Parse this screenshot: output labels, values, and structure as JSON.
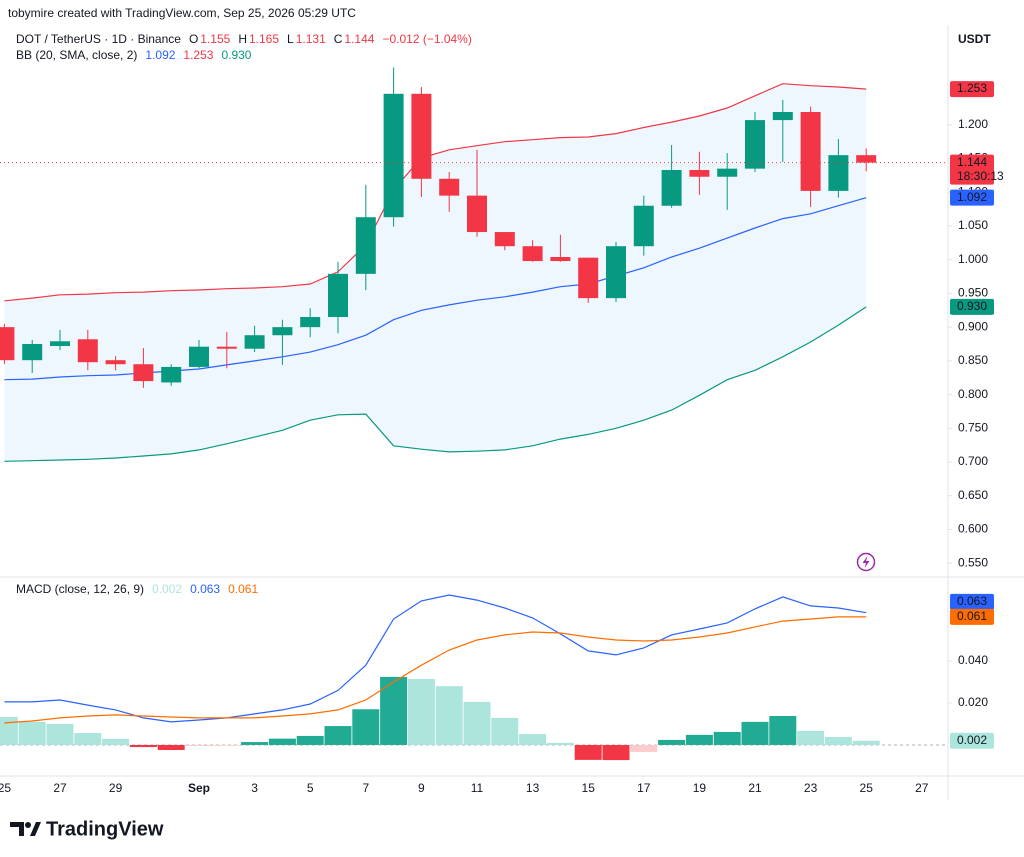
{
  "header": {
    "attribution": "tobymire created with TradingView.com, Sep 25, 2026 05:29 UTC"
  },
  "footer": {
    "brand": "TradingView"
  },
  "chart_data": [
    {
      "type": "candlestick",
      "symbol": "DOT / TetherUS · 1D · Binance",
      "currency": "USDT",
      "ohlc_letters": [
        "O",
        "H",
        "L",
        "C"
      ],
      "change_label": "−0.012 (−1.04%)",
      "countdown": "18:30:13",
      "colors": {
        "up": "#089981",
        "down": "#f23645"
      },
      "categories": [
        "25",
        null,
        "27",
        null,
        "29",
        null,
        null,
        "Sep",
        null,
        "3",
        null,
        "5",
        null,
        "7",
        null,
        "9",
        null,
        "11",
        null,
        "13",
        null,
        "15",
        null,
        "17",
        null,
        "19",
        null,
        "21",
        null,
        "23",
        null,
        "25",
        null,
        "27"
      ],
      "open": [
        0.9,
        0.851,
        0.872,
        0.882,
        0.851,
        0.845,
        0.818,
        0.841,
        0.871,
        0.868,
        0.888,
        0.9,
        0.915,
        0.979,
        1.063,
        1.246,
        1.12,
        1.095,
        1.041,
        1.02,
        1.004,
        1.003,
        0.943,
        1.02,
        1.08,
        1.133,
        1.123,
        1.135,
        1.207,
        1.219,
        1.102,
        1.155,
        null,
        null
      ],
      "high": [
        0.905,
        0.881,
        0.896,
        0.896,
        0.857,
        0.869,
        0.845,
        0.881,
        0.893,
        0.902,
        0.911,
        0.928,
        0.997,
        1.111,
        1.285,
        1.256,
        1.13,
        1.163,
        1.041,
        1.029,
        1.037,
        1.003,
        1.026,
        1.095,
        1.17,
        1.16,
        1.158,
        1.219,
        1.237,
        1.227,
        1.179,
        1.165,
        null,
        null
      ],
      "low": [
        0.845,
        0.832,
        0.866,
        0.836,
        0.836,
        0.81,
        0.813,
        0.839,
        0.839,
        0.863,
        0.844,
        0.885,
        0.891,
        0.955,
        1.049,
        1.093,
        1.071,
        1.034,
        1.014,
        0.997,
        0.997,
        0.936,
        0.937,
        1.006,
        1.077,
        1.096,
        1.074,
        1.13,
        1.145,
        1.078,
        1.092,
        1.131,
        null,
        null
      ],
      "close": [
        0.851,
        0.875,
        0.879,
        0.848,
        0.845,
        0.82,
        0.841,
        0.871,
        0.868,
        0.888,
        0.9,
        0.915,
        0.979,
        1.063,
        1.246,
        1.12,
        1.095,
        1.041,
        1.02,
        0.998,
        0.998,
        0.943,
        1.02,
        1.08,
        1.133,
        1.123,
        1.135,
        1.207,
        1.219,
        1.102,
        1.155,
        1.144,
        null,
        null
      ],
      "bollinger": {
        "label": "BB (20, SMA, close, 2)",
        "fill": "#e3f2fd",
        "series": [
          {
            "color": "#2962ff",
            "values": [
              0.822,
              0.823,
              0.826,
              0.828,
              0.829,
              0.832,
              0.835,
              0.838,
              0.844,
              0.85,
              0.856,
              0.863,
              0.874,
              0.888,
              0.911,
              0.925,
              0.933,
              0.94,
              0.945,
              0.952,
              0.96,
              0.964,
              0.976,
              0.988,
              1.004,
              1.017,
              1.032,
              1.047,
              1.061,
              1.068,
              1.08,
              1.092,
              null,
              null
            ]
          },
          {
            "color": "#f23645",
            "values": [
              0.939,
              0.943,
              0.948,
              0.949,
              0.951,
              0.952,
              0.954,
              0.955,
              0.957,
              0.958,
              0.96,
              0.964,
              0.982,
              1.022,
              1.104,
              1.151,
              1.163,
              1.169,
              1.175,
              1.178,
              1.181,
              1.182,
              1.187,
              1.196,
              1.204,
              1.213,
              1.225,
              1.243,
              1.261,
              1.258,
              1.256,
              1.253,
              null,
              null
            ]
          },
          {
            "color": "#089981",
            "last_label": "0.930",
            "values": [
              0.701,
              0.702,
              0.703,
              0.704,
              0.706,
              0.709,
              0.712,
              0.718,
              0.727,
              0.737,
              0.747,
              0.762,
              0.77,
              0.771,
              0.724,
              0.719,
              0.715,
              0.716,
              0.718,
              0.724,
              0.734,
              0.741,
              0.75,
              0.762,
              0.777,
              0.799,
              0.822,
              0.836,
              0.856,
              0.878,
              0.903,
              0.93,
              null,
              null
            ]
          }
        ]
      },
      "ylim": [
        0.531,
        1.348
      ],
      "yticks": [
        {
          "value": 0.55,
          "label": "0.550"
        },
        {
          "value": 0.6,
          "label": "0.600"
        },
        {
          "value": 0.65,
          "label": "0.650"
        },
        {
          "value": 0.7,
          "label": "0.700"
        },
        {
          "value": 0.75,
          "label": "0.750"
        },
        {
          "value": 0.8,
          "label": "0.800"
        },
        {
          "value": 0.85,
          "label": "0.850"
        },
        {
          "value": 0.9,
          "label": "0.900"
        },
        {
          "value": 0.95,
          "label": "0.950"
        },
        {
          "value": 1.0,
          "label": "1.000"
        },
        {
          "value": 1.05,
          "label": "1.050"
        },
        {
          "value": 1.1,
          "label": "1.100"
        },
        {
          "value": 1.15,
          "label": "1.150"
        },
        {
          "value": 1.2,
          "label": "1.200"
        }
      ]
    },
    {
      "type": "macd",
      "label": "MACD (close, 12, 26, 9)",
      "zero_line": true,
      "histogram": {
        "colors": {
          "grow_above": "#22ab94",
          "fall_above": "#ace5dc",
          "grow_below": "#f23645",
          "fall_below": "#fccbcd"
        },
        "values": [
          0.0133,
          0.011,
          0.01,
          0.0057,
          0.0029,
          -0.001,
          -0.0024,
          -0.0005,
          -0.0004,
          0.0014,
          0.003,
          0.0043,
          0.009,
          0.017,
          0.0324,
          0.0314,
          0.028,
          0.0205,
          0.0129,
          0.0052,
          0.001,
          -0.0071,
          -0.0072,
          -0.0033,
          0.0024,
          0.0048,
          0.0062,
          0.011,
          0.0138,
          0.0067,
          0.0038,
          0.002,
          null,
          null
        ]
      },
      "series": [
        {
          "color": "#2962ff",
          "values": [
            0.0205,
            0.0205,
            0.0214,
            0.019,
            0.0167,
            0.0129,
            0.011,
            0.0119,
            0.0129,
            0.0148,
            0.0167,
            0.0195,
            0.026,
            0.038,
            0.06,
            0.0686,
            0.0714,
            0.069,
            0.0652,
            0.0605,
            0.0529,
            0.0448,
            0.0429,
            0.0462,
            0.0524,
            0.0552,
            0.0581,
            0.0648,
            0.0705,
            0.0662,
            0.0652,
            0.063,
            null,
            null
          ]
        },
        {
          "color": "#ff6d00",
          "values": [
            0.0105,
            0.0114,
            0.0129,
            0.0138,
            0.0143,
            0.0138,
            0.0133,
            0.0129,
            0.0129,
            0.0129,
            0.0138,
            0.0148,
            0.0167,
            0.0214,
            0.03,
            0.038,
            0.0452,
            0.05,
            0.0524,
            0.0538,
            0.0533,
            0.0514,
            0.05,
            0.0495,
            0.05,
            0.0514,
            0.0533,
            0.0562,
            0.059,
            0.06,
            0.061,
            0.061,
            null,
            null
          ]
        }
      ],
      "ylim": [
        -0.0143,
        0.0795
      ],
      "yticks": [
        {
          "value": 0.02,
          "label": "0.020"
        },
        {
          "value": 0.04,
          "label": "0.040"
        }
      ]
    }
  ]
}
